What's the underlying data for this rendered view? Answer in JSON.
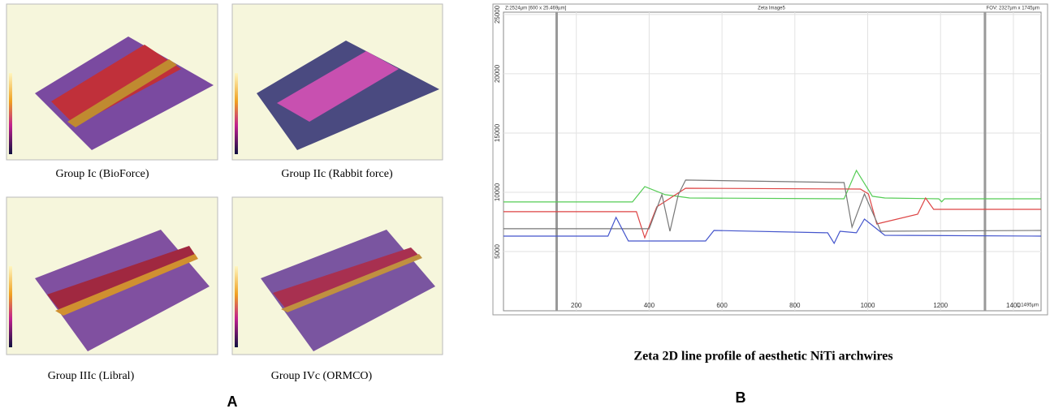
{
  "panel_a": {
    "label": "A",
    "captions": [
      "Group Ic (BioForce)",
      "Group IIc (Rabbit force)",
      "Group IIIc (Libral)",
      "Group IVc (ORMCO)"
    ]
  },
  "panel_b": {
    "label": "B",
    "caption": "Zeta 2D line profile of aesthetic NiTi archwires"
  },
  "chart_data": {
    "type": "line",
    "title": "Zeta Image5",
    "header_left": "Z:2524µm [600 x 25.469µm]",
    "header_right": "FOV: 2327µm x 1745µm",
    "x_label": "L:1495µm",
    "xlim": [
      0,
      1476
    ],
    "xticks": [
      200,
      400,
      600,
      800,
      1000,
      1200,
      1400
    ],
    "ylim": [
      0,
      25200
    ],
    "yticks": [
      5000,
      10000,
      15000,
      20000,
      25000
    ],
    "grid": true,
    "cursor_lines": [
      146,
      1322
    ],
    "series": [
      {
        "color": "#55cc55",
        "x": [
          0,
          354,
          388,
          444,
          511,
          935,
          969,
          1013,
          1047,
          1195,
          1203,
          1211,
          1476
        ],
        "values": [
          9180,
          9180,
          10480,
          9800,
          9520,
          9450,
          11850,
          9660,
          9520,
          9450,
          9200,
          9450,
          9450
        ]
      },
      {
        "color": "#dd4444",
        "x": [
          0,
          365,
          388,
          421,
          500,
          980,
          1002,
          1025,
          1137,
          1159,
          1181,
          1476
        ],
        "values": [
          8360,
          8360,
          6165,
          8770,
          10340,
          10270,
          9860,
          7330,
          8150,
          9520,
          8560,
          8560
        ]
      },
      {
        "color": "#777777",
        "x": [
          0,
          400,
          435,
          457,
          480,
          500,
          935,
          957,
          991,
          1036,
          1476
        ],
        "values": [
          6920,
          6920,
          9800,
          6710,
          9800,
          11030,
          10820,
          7060,
          9860,
          6710,
          6780
        ]
      },
      {
        "color": "#4455cc",
        "x": [
          0,
          287,
          309,
          343,
          555,
          578,
          890,
          908,
          924,
          969,
          991,
          1047,
          1476
        ],
        "values": [
          6300,
          6300,
          7880,
          5890,
          5890,
          6780,
          6580,
          5690,
          6710,
          6580,
          7740,
          6370,
          6300
        ]
      }
    ]
  }
}
